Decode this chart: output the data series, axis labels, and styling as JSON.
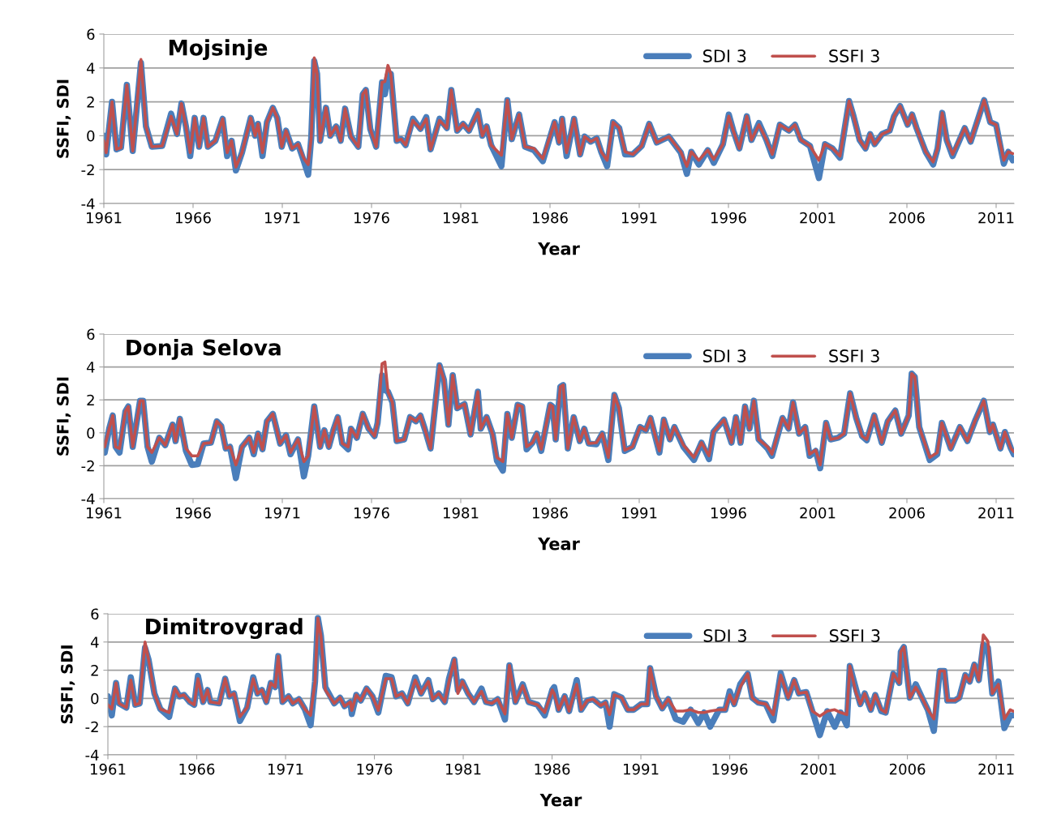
{
  "chart_data": [
    {
      "type": "line",
      "title": "Mojsinje",
      "xlabel": "Year",
      "ylabel": "SSFI, SDI",
      "xlim": [
        1961,
        2012
      ],
      "xticks": [
        1961,
        1966,
        1971,
        1976,
        1981,
        1986,
        1991,
        1996,
        2001,
        2006,
        2011
      ],
      "ylim": [
        -4,
        6
      ],
      "yticks": [
        -4,
        -2,
        0,
        2,
        4,
        6
      ],
      "grid": "y",
      "legend": "top right",
      "line_style": "solid",
      "marker": "none",
      "x": [
        1961.0,
        1961.13,
        1961.46,
        1961.71,
        1961.96,
        1962.29,
        1962.62,
        1963.08,
        1963.36,
        1963.69,
        1964.27,
        1964.77,
        1965.1,
        1965.35,
        1965.6,
        1965.84,
        1966.09,
        1966.34,
        1966.59,
        1966.83,
        1967.25,
        1967.66,
        1967.91,
        1968.16,
        1968.4,
        1968.74,
        1969.23,
        1969.48,
        1969.64,
        1969.89,
        1970.14,
        1970.47,
        1970.72,
        1970.97,
        1971.21,
        1971.55,
        1971.88,
        1972.21,
        1972.45,
        1972.62,
        1972.79,
        1972.95,
        1973.12,
        1973.45,
        1973.69,
        1974.02,
        1974.27,
        1974.52,
        1974.85,
        1975.26,
        1975.51,
        1975.68,
        1975.93,
        1976.26,
        1976.59,
        1976.75,
        1976.92,
        1977.08,
        1977.41,
        1977.66,
        1977.91,
        1978.32,
        1978.74,
        1979.07,
        1979.31,
        1979.81,
        1980.22,
        1980.47,
        1980.8,
        1981.13,
        1981.46,
        1981.96,
        1982.21,
        1982.45,
        1982.7,
        1983.28,
        1983.61,
        1983.86,
        1984.27,
        1984.6,
        1985.1,
        1985.6,
        1986.26,
        1986.51,
        1986.68,
        1986.93,
        1987.35,
        1987.69,
        1987.94,
        1988.28,
        1988.62,
        1988.87,
        1989.2,
        1989.54,
        1989.88,
        1990.21,
        1990.64,
        1991.14,
        1991.56,
        1991.98,
        1992.66,
        1993.33,
        1993.67,
        1993.92,
        1994.34,
        1994.84,
        1995.18,
        1995.69,
        1996.02,
        1996.27,
        1996.61,
        1997.03,
        1997.29,
        1997.71,
        1998.13,
        1998.46,
        1998.88,
        1999.39,
        1999.73,
        2000.06,
        2000.57,
        2001.07,
        2001.41,
        2001.83,
        2002.25,
        2002.76,
        2003.01,
        2003.35,
        2003.68,
        2003.94,
        2004.19,
        2004.61,
        2005.03,
        2005.28,
        2005.62,
        2006.04,
        2006.29,
        2006.54,
        2007.05,
        2007.47,
        2007.72,
        2007.98,
        2008.23,
        2008.56,
        2009.24,
        2009.57,
        2009.99,
        2010.33,
        2010.67,
        2011.0,
        2011.43,
        2011.68,
        2011.93
      ],
      "series": [
        {
          "name": "SDI 3",
          "color": "#4a7ebb",
          "values": [
            0.0,
            -1.1,
            2.0,
            -0.8,
            -0.7,
            3.0,
            -0.9,
            4.3,
            0.55,
            -0.65,
            -0.6,
            1.3,
            0.1,
            1.9,
            0.55,
            -1.2,
            1.05,
            -0.65,
            1.05,
            -0.65,
            -0.3,
            1.0,
            -1.2,
            -0.3,
            -2.05,
            -1.0,
            1.05,
            0.0,
            0.7,
            -1.2,
            0.8,
            1.65,
            1.05,
            -0.65,
            0.3,
            -0.75,
            -0.5,
            -1.5,
            -2.3,
            -0.15,
            4.4,
            3.65,
            -0.3,
            1.65,
            0.0,
            0.55,
            -0.3,
            1.6,
            -0.05,
            -0.65,
            2.45,
            2.7,
            0.4,
            -0.65,
            3.15,
            2.45,
            3.6,
            3.65,
            -0.3,
            -0.2,
            -0.55,
            1.0,
            0.4,
            1.1,
            -0.8,
            1.0,
            0.45,
            2.7,
            0.3,
            0.7,
            0.3,
            1.45,
            0.0,
            0.55,
            -0.55,
            -1.8,
            2.1,
            -0.2,
            1.25,
            -0.65,
            -0.85,
            -1.5,
            0.8,
            -0.4,
            1.0,
            -1.2,
            1.0,
            -1.1,
            -0.05,
            -0.35,
            -0.15,
            -0.95,
            -1.8,
            0.8,
            0.45,
            -1.1,
            -1.1,
            -0.6,
            0.7,
            -0.4,
            -0.05,
            -1.0,
            -2.25,
            -0.95,
            -1.7,
            -0.85,
            -1.6,
            -0.5,
            1.25,
            0.3,
            -0.75,
            1.15,
            -0.25,
            0.75,
            -0.25,
            -1.2,
            0.65,
            0.3,
            0.65,
            -0.25,
            -0.6,
            -2.5,
            -0.5,
            -0.75,
            -1.3,
            2.05,
            1.15,
            -0.25,
            -0.75,
            0.1,
            -0.5,
            0.1,
            0.3,
            1.15,
            1.75,
            0.65,
            1.25,
            0.45,
            -0.95,
            -1.7,
            -0.75,
            1.35,
            -0.25,
            -1.2,
            0.45,
            -0.35,
            1.0,
            2.1,
            0.8,
            0.65,
            -1.65,
            -0.95,
            -1.45
          ]
        },
        {
          "name": "SSFI 3",
          "color": "#c0504d",
          "values": [
            -0.3,
            -1.0,
            2.0,
            -0.8,
            -0.7,
            3.0,
            -0.9,
            4.5,
            0.55,
            -0.65,
            -0.6,
            1.15,
            0.1,
            1.9,
            0.55,
            -1.0,
            1.05,
            -0.65,
            1.05,
            -0.65,
            -0.3,
            1.0,
            -1.0,
            -0.3,
            -1.85,
            -1.0,
            1.05,
            0.0,
            0.7,
            -1.0,
            0.8,
            1.65,
            1.05,
            -0.65,
            0.3,
            -0.75,
            -0.5,
            -1.35,
            -1.7,
            -0.15,
            4.6,
            3.65,
            -0.3,
            1.65,
            0.0,
            0.55,
            -0.3,
            1.6,
            -0.05,
            -0.65,
            2.45,
            2.7,
            0.4,
            -0.65,
            3.15,
            3.2,
            4.15,
            3.65,
            -0.3,
            -0.2,
            -0.55,
            0.9,
            0.4,
            1.0,
            -0.8,
            0.9,
            0.45,
            2.7,
            0.3,
            0.7,
            0.3,
            1.35,
            0.0,
            0.55,
            -0.55,
            -1.15,
            2.1,
            -0.2,
            1.25,
            -0.65,
            -0.75,
            -1.35,
            0.8,
            -0.4,
            1.0,
            -1.0,
            1.0,
            -1.1,
            -0.05,
            -0.35,
            -0.15,
            -0.95,
            -1.45,
            0.8,
            0.45,
            -0.95,
            -1.1,
            -0.6,
            0.7,
            -0.4,
            -0.05,
            -0.95,
            -1.8,
            -0.95,
            -1.45,
            -0.85,
            -1.4,
            -0.5,
            1.15,
            0.3,
            -0.75,
            1.15,
            -0.25,
            0.65,
            -0.25,
            -1.1,
            0.65,
            0.3,
            0.65,
            -0.25,
            -0.6,
            -1.45,
            -0.5,
            -0.75,
            -1.2,
            2.05,
            1.15,
            -0.25,
            -0.75,
            0.1,
            -0.5,
            0.1,
            0.3,
            1.15,
            1.75,
            0.65,
            1.25,
            0.45,
            -0.95,
            -1.55,
            -0.75,
            1.35,
            -0.25,
            -1.1,
            0.45,
            -0.35,
            1.0,
            2.1,
            0.8,
            0.65,
            -1.45,
            -0.95,
            -1.05
          ]
        }
      ]
    },
    {
      "type": "line",
      "title": "Donja Selova",
      "xlabel": "Year",
      "ylabel": "SSFI, SDI",
      "xlim": [
        1961,
        2012
      ],
      "xticks": [
        1961,
        1966,
        1971,
        1976,
        1981,
        1986,
        1991,
        1996,
        2001,
        2006,
        2011
      ],
      "ylim": [
        -4,
        6
      ],
      "yticks": [
        -4,
        -2,
        0,
        2,
        4,
        6
      ],
      "grid": "y",
      "legend": "top right",
      "line_style": "solid",
      "marker": "none",
      "x": [
        1961.05,
        1961.3,
        1961.5,
        1961.66,
        1961.88,
        1962.21,
        1962.37,
        1962.62,
        1963.03,
        1963.2,
        1963.45,
        1963.69,
        1964.11,
        1964.44,
        1964.85,
        1965.02,
        1965.26,
        1965.6,
        1965.93,
        1966.26,
        1966.59,
        1967.0,
        1967.33,
        1967.58,
        1967.83,
        1968.07,
        1968.4,
        1968.74,
        1969.15,
        1969.4,
        1969.64,
        1969.89,
        1970.14,
        1970.47,
        1970.88,
        1971.21,
        1971.46,
        1971.88,
        1972.21,
        1972.45,
        1972.79,
        1973.12,
        1973.36,
        1973.61,
        1973.86,
        1974.11,
        1974.36,
        1974.69,
        1974.85,
        1975.18,
        1975.51,
        1975.84,
        1976.17,
        1976.34,
        1976.59,
        1976.75,
        1976.92,
        1977.17,
        1977.41,
        1977.83,
        1978.16,
        1978.49,
        1978.74,
        1978.98,
        1979.31,
        1979.81,
        1980.06,
        1980.31,
        1980.55,
        1980.8,
        1981.21,
        1981.55,
        1981.96,
        1982.12,
        1982.45,
        1982.79,
        1983.03,
        1983.36,
        1983.61,
        1983.86,
        1984.19,
        1984.44,
        1984.69,
        1985.02,
        1985.26,
        1985.51,
        1986.01,
        1986.15,
        1986.32,
        1986.58,
        1986.74,
        1987.0,
        1987.33,
        1987.67,
        1987.92,
        1988.17,
        1988.6,
        1988.93,
        1989.27,
        1989.61,
        1989.86,
        1990.19,
        1990.62,
        1991.04,
        1991.37,
        1991.63,
        1992.13,
        1992.38,
        1992.72,
        1992.97,
        1993.48,
        1994.07,
        1994.49,
        1994.91,
        1995.16,
        1995.75,
        1996.17,
        1996.42,
        1996.68,
        1996.93,
        1997.18,
        1997.43,
        1997.69,
        1998.19,
        1998.44,
        1999.03,
        1999.37,
        1999.62,
        1999.96,
        2000.3,
        2000.55,
        2000.89,
        2001.14,
        2001.47,
        2001.73,
        2002.15,
        2002.48,
        2002.82,
        2003.16,
        2003.49,
        2003.75,
        2004.17,
        2004.59,
        2004.93,
        2005.35,
        2005.68,
        2006.1,
        2006.27,
        2006.44,
        2006.69,
        2007.28,
        2007.7,
        2007.96,
        2008.46,
        2008.97,
        2009.39,
        2009.81,
        2010.31,
        2010.65,
        2010.82,
        2011.24,
        2011.49,
        2011.83,
        2011.99
      ],
      "series": [
        {
          "name": "SDI 3",
          "color": "#4a7ebb",
          "values": [
            -1.2,
            0.25,
            1.05,
            -0.85,
            -1.2,
            1.3,
            1.6,
            -0.85,
            1.95,
            1.95,
            -0.85,
            -1.75,
            -0.3,
            -0.75,
            0.5,
            -0.5,
            0.85,
            -1.1,
            -1.95,
            -1.9,
            -0.65,
            -0.6,
            0.7,
            0.4,
            -0.95,
            -0.85,
            -2.75,
            -0.85,
            -0.3,
            -1.3,
            -0.05,
            -1.0,
            0.7,
            1.15,
            -0.65,
            -0.15,
            -1.3,
            -0.4,
            -2.65,
            -1.4,
            1.6,
            -0.85,
            0.15,
            -0.85,
            0.15,
            0.95,
            -0.65,
            -1.0,
            0.25,
            -0.3,
            1.15,
            0.25,
            -0.2,
            0.6,
            3.5,
            2.6,
            2.5,
            1.85,
            -0.5,
            -0.4,
            0.95,
            0.7,
            1.05,
            0.25,
            -0.95,
            4.1,
            3.2,
            0.5,
            3.5,
            1.5,
            1.75,
            -0.1,
            2.5,
            0.25,
            0.95,
            -0.1,
            -1.7,
            -2.3,
            1.15,
            -0.3,
            1.7,
            1.6,
            -1.0,
            -0.6,
            -0.05,
            -1.1,
            1.7,
            1.6,
            -0.4,
            2.8,
            2.9,
            -0.95,
            0.95,
            -0.5,
            0.25,
            -0.65,
            -0.7,
            -0.05,
            -1.65,
            2.3,
            1.5,
            -1.1,
            -0.85,
            0.35,
            0.15,
            0.9,
            -1.2,
            0.8,
            -0.4,
            0.35,
            -0.85,
            -1.65,
            -0.6,
            -1.6,
            0.05,
            0.8,
            -0.6,
            0.95,
            -0.6,
            1.6,
            0.25,
            1.95,
            -0.4,
            -0.95,
            -1.4,
            0.9,
            0.25,
            1.85,
            -0.05,
            0.35,
            -1.4,
            -1.1,
            -2.15,
            0.6,
            -0.4,
            -0.3,
            -0.05,
            2.4,
            0.9,
            -0.2,
            -0.45,
            1.05,
            -0.6,
            0.7,
            1.35,
            -0.05,
            1.05,
            3.6,
            3.4,
            0.35,
            -1.65,
            -1.3,
            0.6,
            -0.95,
            0.35,
            -0.5,
            0.7,
            1.95,
            0.05,
            0.5,
            -0.95,
            0.05,
            -0.95,
            -1.3
          ]
        },
        {
          "name": "SSFI 3",
          "color": "#c0504d",
          "values": [
            -0.85,
            0.25,
            1.05,
            -0.85,
            -0.95,
            1.3,
            1.6,
            -0.85,
            1.95,
            1.95,
            -0.85,
            -1.2,
            -0.3,
            -0.75,
            0.5,
            -0.5,
            0.85,
            -0.95,
            -1.4,
            -1.4,
            -0.65,
            -0.6,
            0.7,
            0.4,
            -0.95,
            -0.85,
            -1.95,
            -0.85,
            -0.3,
            -1.2,
            -0.05,
            -1.0,
            0.7,
            1.15,
            -0.65,
            -0.15,
            -1.2,
            -0.4,
            -1.75,
            -1.4,
            1.6,
            -0.85,
            0.15,
            -0.85,
            0.15,
            0.95,
            -0.65,
            -0.85,
            0.25,
            -0.3,
            1.15,
            0.25,
            -0.2,
            0.6,
            4.2,
            4.3,
            2.5,
            1.85,
            -0.5,
            -0.4,
            0.95,
            0.7,
            1.05,
            0.25,
            -0.95,
            4.1,
            3.2,
            0.5,
            3.5,
            1.5,
            1.75,
            -0.1,
            2.5,
            0.25,
            0.95,
            -0.1,
            -1.5,
            -1.75,
            1.15,
            -0.3,
            1.7,
            1.6,
            -0.85,
            -0.6,
            -0.05,
            -1.0,
            1.7,
            1.6,
            -0.4,
            2.8,
            2.9,
            -0.95,
            0.95,
            -0.5,
            0.25,
            -0.65,
            -0.6,
            -0.05,
            -1.5,
            2.3,
            1.5,
            -1.05,
            -0.85,
            0.35,
            0.15,
            0.9,
            -1.1,
            0.8,
            -0.4,
            0.35,
            -0.75,
            -1.5,
            -0.6,
            -1.4,
            0.05,
            0.8,
            -0.6,
            0.95,
            -0.6,
            1.6,
            0.25,
            1.95,
            -0.4,
            -0.85,
            -1.3,
            0.9,
            0.25,
            1.85,
            -0.05,
            0.35,
            -1.3,
            -1.05,
            -1.95,
            0.6,
            -0.4,
            -0.3,
            -0.05,
            2.4,
            0.9,
            -0.2,
            -0.4,
            1.05,
            -0.6,
            0.7,
            1.35,
            -0.05,
            1.05,
            3.6,
            3.4,
            0.35,
            -1.5,
            -1.2,
            0.6,
            -0.95,
            0.35,
            -0.5,
            0.7,
            1.95,
            0.05,
            0.5,
            -0.95,
            0.05,
            -0.95,
            -1.15
          ]
        }
      ]
    },
    {
      "type": "line",
      "title": "Dimitrovgrad",
      "xlabel": "Year",
      "ylabel": "SSFI, SDI",
      "xlim": [
        1961,
        2012
      ],
      "xticks": [
        1961,
        1966,
        1971,
        1976,
        1981,
        1986,
        1991,
        1996,
        2001,
        2006,
        2011
      ],
      "ylim": [
        -4,
        6
      ],
      "yticks": [
        -4,
        -2,
        0,
        2,
        4,
        6
      ],
      "grid": "y",
      "legend": "top right",
      "line_style": "solid",
      "marker": "none",
      "x": [
        1961.0,
        1961.22,
        1961.46,
        1961.63,
        1962.04,
        1962.29,
        1962.54,
        1962.79,
        1963.09,
        1963.29,
        1963.62,
        1963.95,
        1964.45,
        1964.78,
        1965.03,
        1965.28,
        1965.61,
        1965.86,
        1966.07,
        1966.36,
        1966.61,
        1966.77,
        1967.27,
        1967.6,
        1967.85,
        1968.1,
        1968.43,
        1968.84,
        1969.18,
        1969.42,
        1969.67,
        1969.92,
        1970.17,
        1970.42,
        1970.59,
        1970.83,
        1971.17,
        1971.41,
        1971.75,
        1972.08,
        1972.41,
        1972.66,
        1972.82,
        1972.99,
        1973.24,
        1973.74,
        1974.07,
        1974.32,
        1974.65,
        1974.73,
        1974.98,
        1975.23,
        1975.56,
        1975.89,
        1976.22,
        1976.64,
        1976.97,
        1977.22,
        1977.55,
        1977.88,
        1978.3,
        1978.63,
        1979.04,
        1979.29,
        1979.62,
        1979.96,
        1980.2,
        1980.5,
        1980.7,
        1980.95,
        1981.28,
        1981.61,
        1982.03,
        1982.28,
        1982.61,
        1982.94,
        1983.35,
        1983.6,
        1983.94,
        1984.35,
        1984.68,
        1985.18,
        1985.59,
        1986.01,
        1986.12,
        1986.37,
        1986.71,
        1986.96,
        1987.39,
        1987.64,
        1987.98,
        1988.31,
        1988.74,
        1989.01,
        1989.24,
        1989.5,
        1989.92,
        1990.26,
        1990.6,
        1991.02,
        1991.36,
        1991.52,
        1991.86,
        1992.2,
        1992.54,
        1992.96,
        1993.38,
        1993.8,
        1994.23,
        1994.56,
        1994.9,
        1995.41,
        1995.75,
        1996.0,
        1996.25,
        1996.59,
        1997.01,
        1997.27,
        1997.61,
        1998.03,
        1998.45,
        1998.87,
        1999.29,
        1999.63,
        1999.89,
        2000.31,
        2000.65,
        2001.07,
        2001.49,
        2001.91,
        2002.25,
        2002.59,
        2002.76,
        2003.1,
        2003.35,
        2003.6,
        2003.94,
        2004.19,
        2004.53,
        2004.78,
        2005.21,
        2005.54,
        2005.63,
        2005.8,
        2006.14,
        2006.47,
        2006.9,
        2007.15,
        2007.49,
        2007.82,
        2008.08,
        2008.25,
        2008.67,
        2008.92,
        2009.26,
        2009.51,
        2009.77,
        2010.02,
        2010.27,
        2010.53,
        2010.78,
        2011.12,
        2011.46,
        2011.79,
        2011.96
      ],
      "series": [
        {
          "name": "SDI 3",
          "color": "#4a7ebb",
          "values": [
            0.15,
            -1.2,
            1.1,
            -0.35,
            -0.65,
            1.5,
            -0.45,
            -0.35,
            3.6,
            2.75,
            0.35,
            -0.75,
            -1.3,
            0.7,
            0.15,
            0.25,
            -0.25,
            -0.45,
            1.6,
            -0.25,
            0.6,
            -0.25,
            -0.35,
            1.4,
            0.15,
            0.35,
            -1.6,
            -0.65,
            1.5,
            0.35,
            0.6,
            -0.25,
            1.1,
            0.8,
            3.0,
            -0.25,
            0.15,
            -0.35,
            -0.05,
            -0.75,
            -1.9,
            1.2,
            5.7,
            4.45,
            0.8,
            -0.35,
            0.05,
            -0.55,
            -0.25,
            -1.1,
            0.25,
            -0.15,
            0.7,
            0.15,
            -1.0,
            1.6,
            1.5,
            0.15,
            0.35,
            -0.35,
            1.5,
            0.35,
            1.3,
            -0.05,
            0.35,
            -0.25,
            1.4,
            2.75,
            0.6,
            1.2,
            0.35,
            -0.25,
            0.7,
            -0.25,
            -0.35,
            -0.05,
            -1.5,
            2.35,
            -0.25,
            1.0,
            -0.25,
            -0.45,
            -1.2,
            0.6,
            0.8,
            -0.8,
            0.15,
            -0.9,
            1.3,
            -0.8,
            -0.15,
            -0.05,
            -0.5,
            -0.3,
            -2.0,
            0.3,
            0.05,
            -0.8,
            -0.8,
            -0.4,
            -0.4,
            2.15,
            0.15,
            -0.7,
            -0.05,
            -1.45,
            -1.65,
            -0.8,
            -1.75,
            -1.0,
            -2.0,
            -0.8,
            -0.8,
            0.5,
            -0.4,
            1.0,
            1.75,
            0.05,
            -0.3,
            -0.4,
            -1.55,
            1.8,
            0.05,
            1.3,
            0.35,
            0.45,
            -0.9,
            -2.6,
            -0.9,
            -2.0,
            -1.0,
            -1.9,
            2.3,
            0.7,
            -0.4,
            0.35,
            -0.8,
            0.25,
            -0.9,
            -1.0,
            1.75,
            1.1,
            3.3,
            3.65,
            0.05,
            1.0,
            -0.15,
            -0.8,
            -2.3,
            1.95,
            1.95,
            -0.15,
            -0.15,
            0.05,
            1.65,
            1.2,
            2.4,
            1.3,
            3.8,
            3.6,
            0.35,
            1.2,
            -2.1,
            -1.2,
            -1.2
          ]
        },
        {
          "name": "SSFI 3",
          "color": "#c0504d",
          "values": [
            -0.45,
            -0.75,
            1.1,
            -0.35,
            -0.65,
            1.3,
            -0.45,
            -0.35,
            4.0,
            2.75,
            0.35,
            -0.75,
            -1.0,
            0.7,
            0.15,
            0.25,
            -0.25,
            -0.45,
            1.4,
            -0.25,
            0.6,
            -0.25,
            -0.35,
            1.4,
            0.15,
            0.35,
            -1.3,
            -0.65,
            1.4,
            0.35,
            0.6,
            -0.25,
            1.1,
            0.8,
            3.0,
            -0.25,
            0.15,
            -0.35,
            -0.05,
            -0.75,
            -1.2,
            1.2,
            5.7,
            4.45,
            0.6,
            -0.35,
            0.05,
            -0.55,
            -0.25,
            -0.85,
            0.25,
            -0.15,
            0.7,
            0.15,
            -0.85,
            1.4,
            1.4,
            0.15,
            0.35,
            -0.35,
            1.3,
            0.35,
            1.2,
            -0.05,
            0.35,
            -0.25,
            1.2,
            2.75,
            0.35,
            1.2,
            0.35,
            -0.25,
            0.5,
            -0.25,
            -0.35,
            -0.05,
            -1.1,
            2.35,
            -0.25,
            0.9,
            -0.25,
            -0.45,
            -1.0,
            0.6,
            0.35,
            -0.8,
            0.15,
            -0.9,
            1.0,
            -0.8,
            -0.15,
            -0.05,
            -0.5,
            -0.3,
            -1.15,
            0.25,
            0.05,
            -0.8,
            -0.8,
            -0.4,
            -0.4,
            2.15,
            0.15,
            -0.7,
            -0.05,
            -0.9,
            -0.9,
            -0.8,
            -1.0,
            -1.0,
            -0.9,
            -0.8,
            -0.8,
            0.25,
            -0.4,
            0.8,
            1.75,
            0.05,
            -0.3,
            -0.4,
            -1.15,
            1.65,
            0.05,
            1.3,
            0.35,
            0.45,
            -0.9,
            -1.25,
            -0.9,
            -0.8,
            -1.0,
            -1.15,
            2.3,
            0.45,
            -0.4,
            0.35,
            -0.8,
            0.25,
            -0.8,
            -1.0,
            1.75,
            1.1,
            3.3,
            3.65,
            0.05,
            0.8,
            -0.15,
            -0.8,
            -1.45,
            1.95,
            1.95,
            -0.15,
            -0.15,
            0.05,
            1.65,
            1.2,
            2.4,
            1.3,
            4.5,
            4.05,
            0.35,
            1.0,
            -1.45,
            -0.8,
            -0.9
          ]
        }
      ]
    }
  ]
}
